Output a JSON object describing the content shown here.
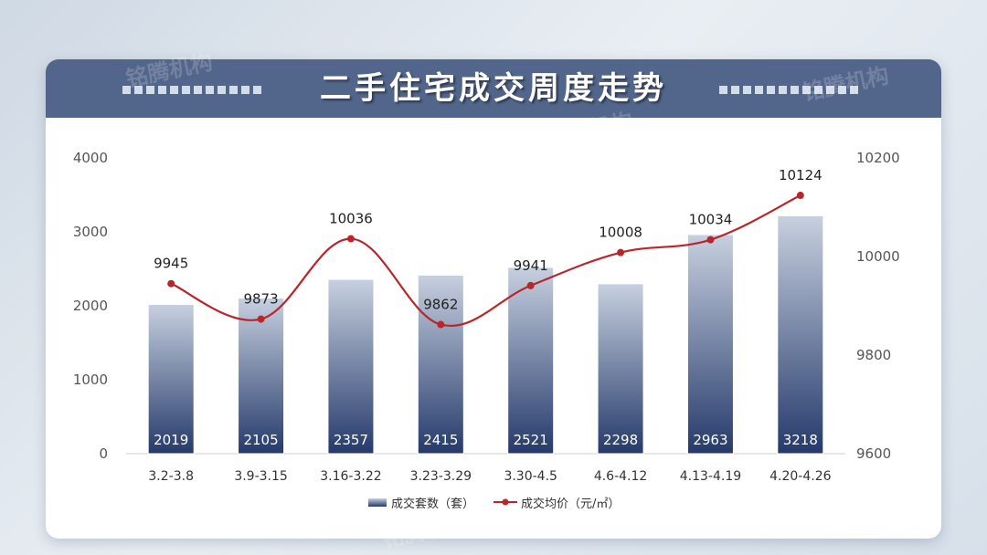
{
  "title": "二手住宅成交周度走势",
  "watermark": "铭腾机构",
  "colors": {
    "header": "#52658a",
    "bar_top": "#c7d0df",
    "bar_bottom": "#253a6b",
    "line": "#b8262b"
  },
  "chart_data": {
    "type": "bar",
    "categories": [
      "3.2-3.8",
      "3.9-3.15",
      "3.16-3.22",
      "3.23-3.29",
      "3.30-4.5",
      "4.6-4.12",
      "4.13-4.19",
      "4.20-4.26"
    ],
    "series": [
      {
        "name": "成交套数（套）",
        "type": "bar",
        "axis": "left",
        "values": [
          2019,
          2105,
          2357,
          2415,
          2521,
          2298,
          2963,
          3218
        ]
      },
      {
        "name": "成交均价（元/㎡）",
        "type": "line",
        "axis": "right",
        "values": [
          9945,
          9873,
          10036,
          9862,
          9941,
          10008,
          10034,
          10124
        ]
      }
    ],
    "y_left": {
      "ylim": [
        0,
        4000
      ],
      "ticks": [
        0,
        1000,
        2000,
        3000,
        4000
      ]
    },
    "y_right": {
      "ylim": [
        9600,
        10200
      ],
      "ticks": [
        9600,
        9800,
        10000,
        10200
      ]
    },
    "grid": false,
    "legend": "bottom-center",
    "data_labels": true
  }
}
